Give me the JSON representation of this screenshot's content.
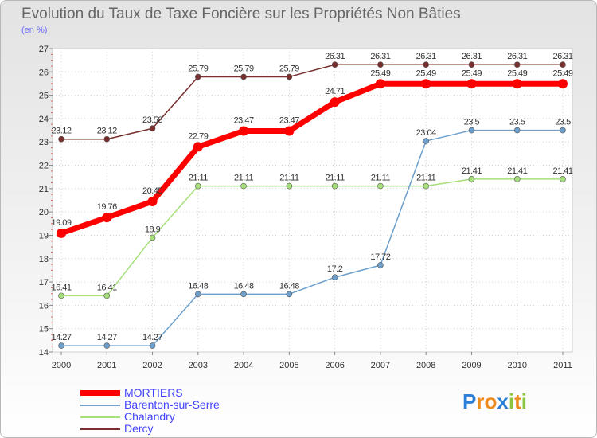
{
  "chart_data": {
    "type": "line",
    "title": "Evolution du Taux de Taxe Foncière sur les Propriétés Non Bâties",
    "subtitle": "(en %)",
    "xlabel": "",
    "ylabel": "",
    "ylim": [
      14,
      27
    ],
    "yticks": [
      "14",
      "15",
      "16",
      "17",
      "18",
      "19",
      "20",
      "21",
      "22",
      "23",
      "24",
      "25",
      "26",
      "27"
    ],
    "x": [
      "2000",
      "2001",
      "2002",
      "2003",
      "2004",
      "2005",
      "2006",
      "2007",
      "2008",
      "2009",
      "2010",
      "2011"
    ],
    "series": [
      {
        "name": "MORTIERS",
        "color": "#ff0000",
        "values": [
          19.09,
          19.76,
          20.45,
          22.79,
          23.47,
          23.47,
          24.71,
          25.49,
          25.49,
          25.49,
          25.49,
          25.49
        ],
        "labels": [
          "19.09",
          "19.76",
          "20.45",
          "22.79",
          "23.47",
          "23.47",
          "24.71",
          "25.49",
          "25.49",
          "25.49",
          "25.49",
          "25.49"
        ]
      },
      {
        "name": "Barenton-sur-Serre",
        "color": "#6c9fcc",
        "values": [
          14.27,
          14.27,
          14.27,
          16.48,
          16.48,
          16.48,
          17.2,
          17.72,
          23.04,
          23.5,
          23.5,
          23.5
        ],
        "labels": [
          "14.27",
          "14.27",
          "14.27",
          "16.48",
          "16.48",
          "16.48",
          "17.2",
          "17.72",
          "23.04",
          "23.5",
          "23.5",
          "23.5"
        ]
      },
      {
        "name": "Chalandry",
        "color": "#a6e07a",
        "values": [
          16.41,
          16.41,
          18.9,
          21.11,
          21.11,
          21.11,
          21.11,
          21.11,
          21.11,
          21.41,
          21.41,
          21.41
        ],
        "labels": [
          "16.41",
          "16.41",
          "18.9",
          "21.11",
          "21.11",
          "21.11",
          "21.11",
          "21.11",
          "21.11",
          "21.41",
          "21.41",
          "21.41"
        ]
      },
      {
        "name": "Dercy",
        "color": "#7a2e2e",
        "values": [
          23.12,
          23.12,
          23.58,
          25.79,
          25.79,
          25.79,
          26.31,
          26.31,
          26.31,
          26.31,
          26.31,
          26.31
        ],
        "labels": [
          "23.12",
          "23.12",
          "23.58",
          "25.79",
          "25.79",
          "25.79",
          "26.31",
          "26.31",
          "26.31",
          "26.31",
          "26.31",
          "26.31"
        ]
      }
    ]
  },
  "brand": {
    "letters": [
      "P",
      "r",
      "o",
      "x",
      "i",
      "t",
      "i"
    ],
    "colors": [
      "#2b7fd4",
      "#f08a1c",
      "#f08a1c",
      "#2b7fd4",
      "#8cc63f",
      "#f08a1c",
      "#8cc63f"
    ]
  }
}
